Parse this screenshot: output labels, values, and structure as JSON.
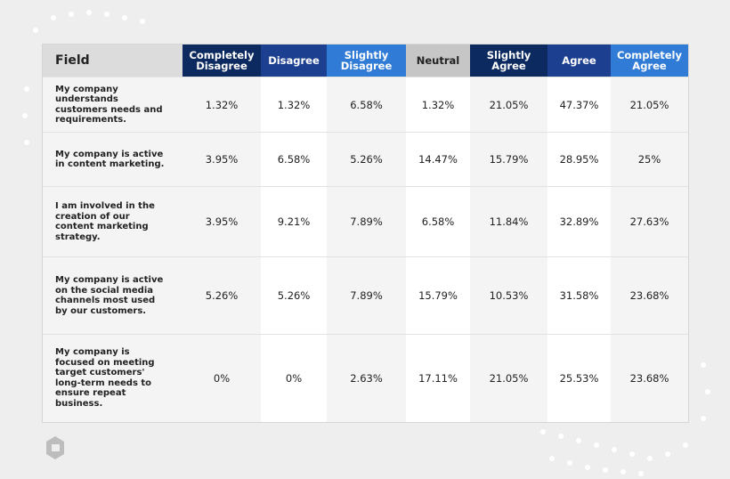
{
  "table": {
    "headers": [
      "Field",
      "Completely Disagree",
      "Disagree",
      "Slightly Disagree",
      "Neutral",
      "Slightly Agree",
      "Agree",
      "Completely Agree"
    ],
    "rows": [
      [
        "My company understands customers needs and requirements.",
        "1.32%",
        "1.32%",
        "6.58%",
        "1.32%",
        "21.05%",
        "47.37%",
        "21.05%"
      ],
      [
        "My company is active in content marketing.",
        "3.95%",
        "6.58%",
        "5.26%",
        "14.47%",
        "15.79%",
        "28.95%",
        "25%"
      ],
      [
        "I am involved in the creation of our content marketing strategy.",
        "3.95%",
        "9.21%",
        "7.89%",
        "6.58%",
        "11.84%",
        "32.89%",
        "27.63%"
      ],
      [
        "My company is active on the social media channels most used by our customers.",
        "5.26%",
        "5.26%",
        "7.89%",
        "15.79%",
        "10.53%",
        "31.58%",
        "23.68%"
      ],
      [
        "My company is focused on meeting target customers' long-term needs to ensure repeat business.",
        "0%",
        "0%",
        "2.63%",
        "17.11%",
        "21.05%",
        "25.53%",
        "23.68%"
      ]
    ]
  }
}
